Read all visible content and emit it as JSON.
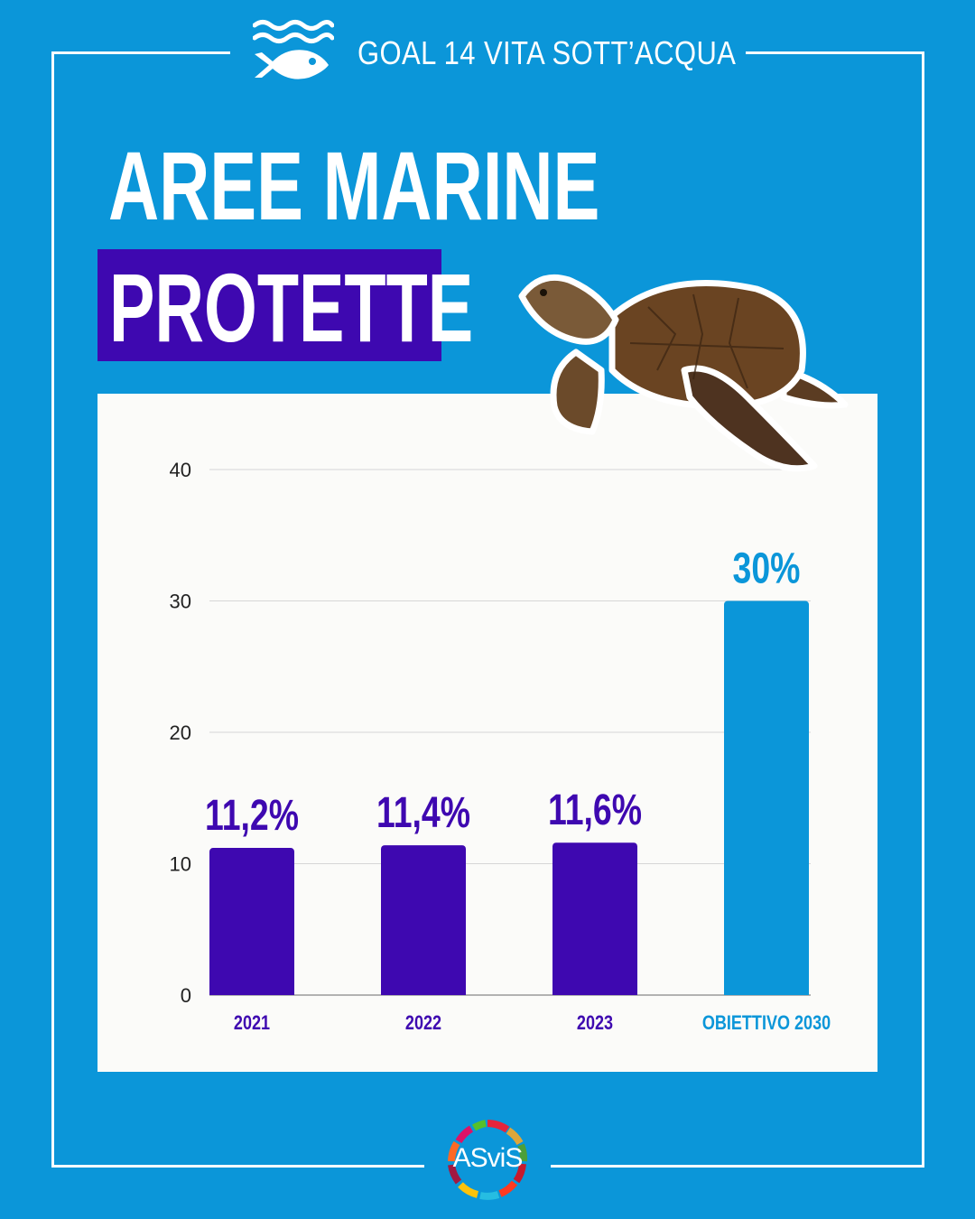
{
  "header": {
    "goal_label": "GOAL 14 VITA SOTT’ACQUA",
    "icon": "fish-waves-icon"
  },
  "title": {
    "line1": "AREE MARINE",
    "line2": "PROTETTE"
  },
  "colors": {
    "background": "#0b96d9",
    "highlight": "#3e08b0",
    "bar_history": "#3e08b0",
    "bar_target": "#0b96d9",
    "panel": "#fbfbf9"
  },
  "chart_data": {
    "type": "bar",
    "categories": [
      "2021",
      "2022",
      "2023",
      "OBIETTIVO 2030"
    ],
    "values": [
      11.2,
      11.4,
      11.6,
      30
    ],
    "data_labels": [
      "11,2%",
      "11,4%",
      "11,6%",
      "30%"
    ],
    "bar_colors": [
      "#3e08b0",
      "#3e08b0",
      "#3e08b0",
      "#0b96d9"
    ],
    "yticks": [
      0,
      10,
      20,
      30,
      40
    ],
    "ylim": [
      0,
      40
    ],
    "grid": true,
    "title": "",
    "xlabel": "",
    "ylabel": ""
  },
  "decorations": {
    "turtle": "sea-turtle-illustration",
    "logo": {
      "icon": "asvis-logo",
      "text": "ASviS"
    }
  }
}
